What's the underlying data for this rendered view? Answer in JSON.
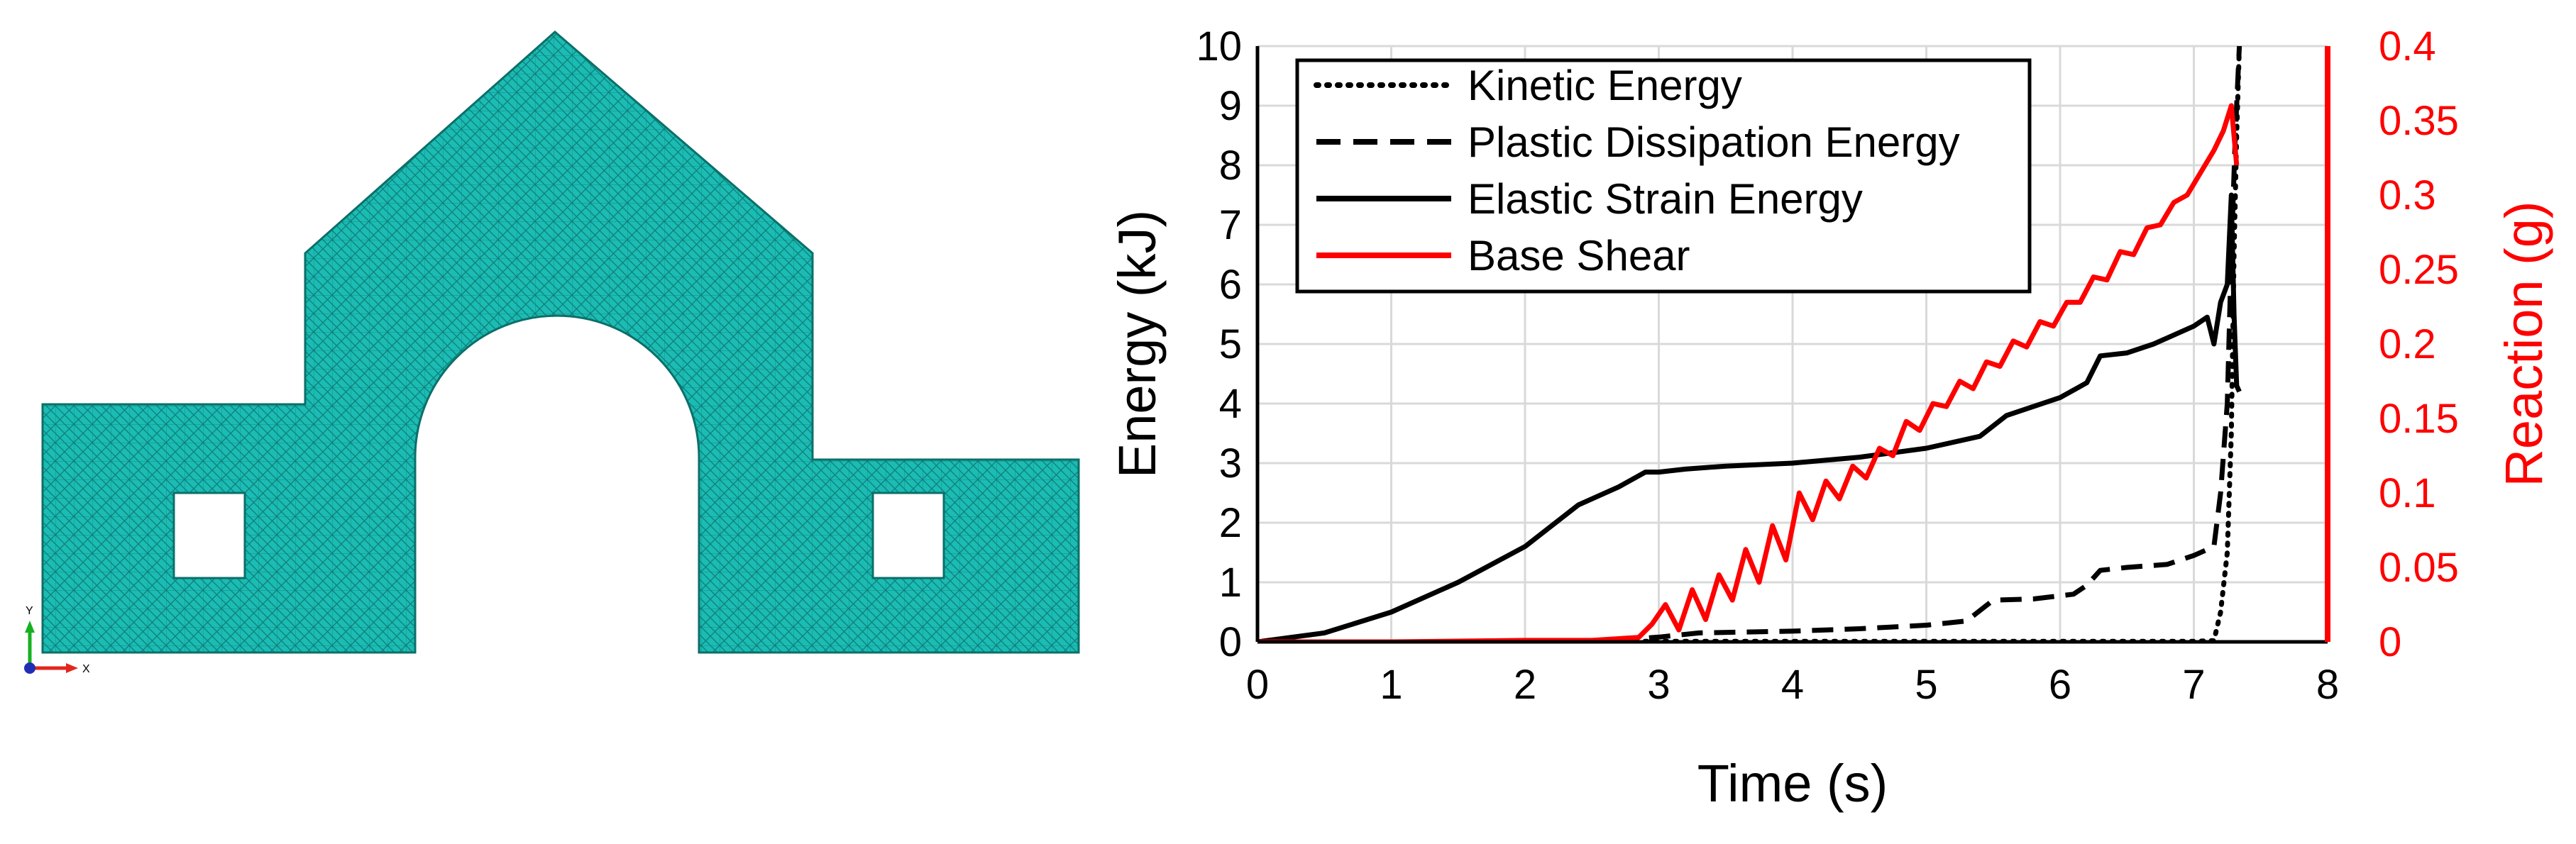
{
  "mesh_panel": {
    "triad": {
      "y_label": "Y",
      "x_label": "X"
    },
    "colors": {
      "fill": "#1bbcb4",
      "edge": "#0b6f69",
      "triad_x": "#e3261c",
      "triad_y": "#17b021",
      "triad_origin": "#1f2fb5"
    }
  },
  "chart_data": {
    "type": "line",
    "xlabel": "Time (s)",
    "ylabel": "Energy (kJ)",
    "y2label": "Reaction (g)",
    "xlim": [
      0,
      8
    ],
    "ylim": [
      0,
      10
    ],
    "y2lim": [
      0,
      0.4
    ],
    "x_ticks": [
      0,
      1,
      2,
      3,
      4,
      5,
      6,
      7,
      8
    ],
    "y_ticks": [
      0,
      1,
      2,
      3,
      4,
      5,
      6,
      7,
      8,
      9,
      10
    ],
    "y2_ticks": [
      "0",
      "0.05",
      "0.1",
      "0.15",
      "0.2",
      "0.25",
      "0.3",
      "0.35",
      "0.4"
    ],
    "grid": true,
    "legend_position": "top-left",
    "colors": {
      "energy": "#000000",
      "reaction": "#ff0000",
      "grid": "#d9d9d9",
      "axis": "#000000"
    },
    "series": [
      {
        "name": "Kinetic Energy",
        "axis": "left",
        "style": "dotted",
        "color": "#000000",
        "x": [
          0,
          1,
          2,
          3,
          4,
          5,
          6,
          7,
          7.15,
          7.2,
          7.25,
          7.28,
          7.3,
          7.32,
          7.34
        ],
        "y": [
          0,
          0,
          0,
          0.01,
          0.01,
          0.01,
          0.01,
          0.01,
          0.02,
          0.5,
          1.5,
          3.5,
          6.5,
          8.5,
          10
        ]
      },
      {
        "name": "Plastic Dissipation Energy",
        "axis": "left",
        "style": "dashed",
        "color": "#000000",
        "x": [
          0,
          2.5,
          3.0,
          3.3,
          4.0,
          4.5,
          5.0,
          5.3,
          5.5,
          5.8,
          6.1,
          6.2,
          6.3,
          6.5,
          6.8,
          7.0,
          7.15,
          7.2,
          7.25,
          7.28,
          7.31,
          7.34
        ],
        "y": [
          0,
          0,
          0.08,
          0.15,
          0.18,
          0.22,
          0.28,
          0.35,
          0.7,
          0.72,
          0.8,
          0.95,
          1.2,
          1.25,
          1.3,
          1.45,
          1.6,
          2.5,
          4.0,
          6.5,
          8.5,
          10
        ]
      },
      {
        "name": "Elastic Strain Energy",
        "axis": "left",
        "style": "solid",
        "color": "#000000",
        "x": [
          0,
          0.5,
          1.0,
          1.5,
          2.0,
          2.4,
          2.7,
          2.9,
          3.0,
          3.2,
          3.5,
          4.0,
          4.5,
          5.0,
          5.4,
          5.6,
          5.8,
          6.0,
          6.2,
          6.3,
          6.5,
          6.7,
          7.0,
          7.1,
          7.15,
          7.2,
          7.25,
          7.28,
          7.3,
          7.32,
          7.34
        ],
        "y": [
          0,
          0.15,
          0.5,
          1.0,
          1.6,
          2.3,
          2.6,
          2.85,
          2.85,
          2.9,
          2.95,
          3.0,
          3.1,
          3.25,
          3.45,
          3.8,
          3.95,
          4.1,
          4.35,
          4.8,
          4.85,
          5.0,
          5.3,
          5.45,
          5.0,
          5.7,
          6.0,
          7.5,
          5.5,
          4.3,
          4.2
        ]
      },
      {
        "name": "Base Shear",
        "axis": "right",
        "style": "solid",
        "color": "#ff0000",
        "x": [
          0,
          1.0,
          2.0,
          2.5,
          2.85,
          2.95,
          3.05,
          3.15,
          3.25,
          3.35,
          3.45,
          3.55,
          3.65,
          3.75,
          3.85,
          3.95,
          4.05,
          4.15,
          4.25,
          4.35,
          4.45,
          4.55,
          4.65,
          4.75,
          4.85,
          4.95,
          5.05,
          5.15,
          5.25,
          5.35,
          5.45,
          5.55,
          5.65,
          5.75,
          5.85,
          5.95,
          6.05,
          6.15,
          6.25,
          6.35,
          6.45,
          6.55,
          6.65,
          6.75,
          6.85,
          6.95,
          7.05,
          7.15,
          7.22,
          7.28,
          7.32
        ],
        "y": [
          0,
          0,
          0.001,
          0.001,
          0.003,
          0.012,
          0.025,
          0.008,
          0.035,
          0.015,
          0.045,
          0.028,
          0.062,
          0.04,
          0.078,
          0.055,
          0.1,
          0.082,
          0.108,
          0.096,
          0.118,
          0.11,
          0.13,
          0.125,
          0.148,
          0.142,
          0.16,
          0.158,
          0.175,
          0.17,
          0.188,
          0.185,
          0.202,
          0.198,
          0.215,
          0.212,
          0.228,
          0.228,
          0.245,
          0.243,
          0.262,
          0.26,
          0.278,
          0.28,
          0.295,
          0.3,
          0.315,
          0.33,
          0.343,
          0.36,
          0.32
        ]
      }
    ]
  }
}
